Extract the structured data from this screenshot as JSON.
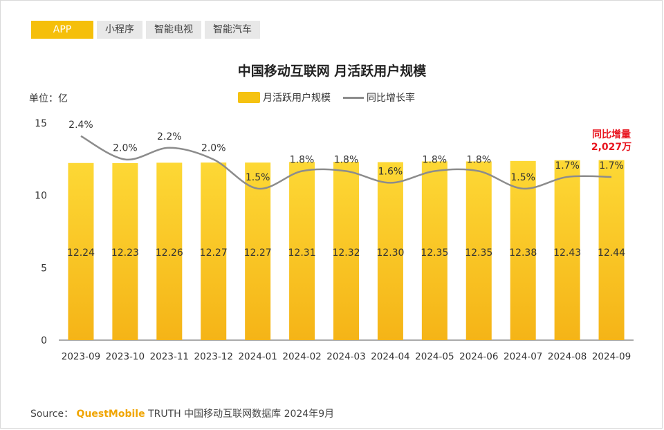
{
  "tabs": [
    {
      "label": "APP",
      "active": true
    },
    {
      "label": "小程序",
      "active": false
    },
    {
      "label": "智能电视",
      "active": false
    },
    {
      "label": "智能汽车",
      "active": false
    }
  ],
  "unit_label": "单位：亿",
  "callout": {
    "line1": "同比增量",
    "line2": "2,027万",
    "color": "#e8141e"
  },
  "source": {
    "prefix": "Source：",
    "brand": "QuestMobile",
    "rest": "TRUTH 中国移动互联网数据库 2024年9月"
  },
  "colors": {
    "bar_top": "#fdd835",
    "bar_bottom": "#f5b417",
    "line": "#8c8c8c",
    "accent": "#f5bf0a"
  },
  "chart_data": {
    "type": "bar",
    "title": "中国移动互联网 月活跃用户规模",
    "categories": [
      "2023-09",
      "2023-10",
      "2023-11",
      "2023-12",
      "2024-01",
      "2024-02",
      "2024-03",
      "2024-04",
      "2024-05",
      "2024-06",
      "2024-07",
      "2024-08",
      "2024-09"
    ],
    "series": [
      {
        "name": "月活跃用户规模",
        "type": "bar",
        "axis": "left",
        "values": [
          12.24,
          12.23,
          12.26,
          12.27,
          12.27,
          12.31,
          12.32,
          12.3,
          12.35,
          12.35,
          12.38,
          12.43,
          12.44
        ]
      },
      {
        "name": "同比增长率",
        "type": "line",
        "axis": "right",
        "values": [
          2.4,
          2.0,
          2.2,
          2.0,
          1.5,
          1.8,
          1.8,
          1.6,
          1.8,
          1.8,
          1.5,
          1.7,
          1.7
        ],
        "labels": [
          "2.4%",
          "2.0%",
          "2.2%",
          "2.0%",
          "1.5%",
          "1.8%",
          "1.8%",
          "1.6%",
          "1.8%",
          "1.8%",
          "1.5%",
          "1.7%",
          "1.7%"
        ]
      }
    ],
    "ylim": [
      0,
      15
    ],
    "yticks": [
      "0",
      "5",
      "10",
      "15"
    ],
    "legend_position": "top-center",
    "grid": false
  }
}
